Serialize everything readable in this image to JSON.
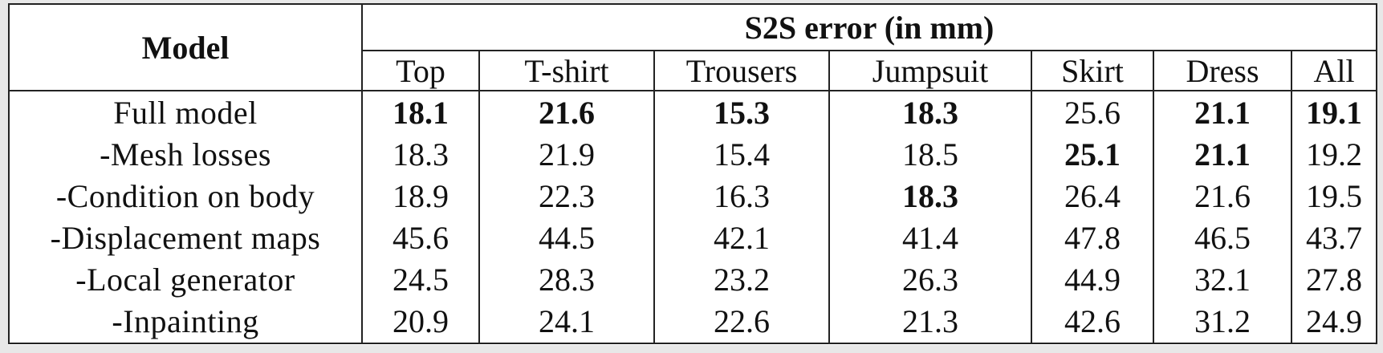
{
  "table": {
    "model_header": "Model",
    "group_header": "S2S error (in mm)",
    "columns": [
      "Top",
      "T-shirt",
      "Trousers",
      "Jumpsuit",
      "Skirt",
      "Dress",
      "All"
    ],
    "rows": [
      {
        "label": "Full model",
        "values": [
          "18.1",
          "21.6",
          "15.3",
          "18.3",
          "25.6",
          "21.1",
          "19.1"
        ],
        "bold": [
          true,
          true,
          true,
          true,
          false,
          true,
          true
        ]
      },
      {
        "label": "-Mesh losses",
        "values": [
          "18.3",
          "21.9",
          "15.4",
          "18.5",
          "25.1",
          "21.1",
          "19.2"
        ],
        "bold": [
          false,
          false,
          false,
          false,
          true,
          true,
          false
        ]
      },
      {
        "label": "-Condition on body",
        "values": [
          "18.9",
          "22.3",
          "16.3",
          "18.3",
          "26.4",
          "21.6",
          "19.5"
        ],
        "bold": [
          false,
          false,
          false,
          true,
          false,
          false,
          false
        ]
      },
      {
        "label": "-Displacement maps",
        "values": [
          "45.6",
          "44.5",
          "42.1",
          "41.4",
          "47.8",
          "46.5",
          "43.7"
        ],
        "bold": [
          false,
          false,
          false,
          false,
          false,
          false,
          false
        ]
      },
      {
        "label": "-Local generator",
        "values": [
          "24.5",
          "28.3",
          "23.2",
          "26.3",
          "44.9",
          "32.1",
          "27.8"
        ],
        "bold": [
          false,
          false,
          false,
          false,
          false,
          false,
          false
        ]
      },
      {
        "label": "-Inpainting",
        "values": [
          "20.9",
          "24.1",
          "22.6",
          "21.3",
          "42.6",
          "31.2",
          "24.9"
        ],
        "bold": [
          false,
          false,
          false,
          false,
          false,
          false,
          false
        ]
      }
    ]
  }
}
